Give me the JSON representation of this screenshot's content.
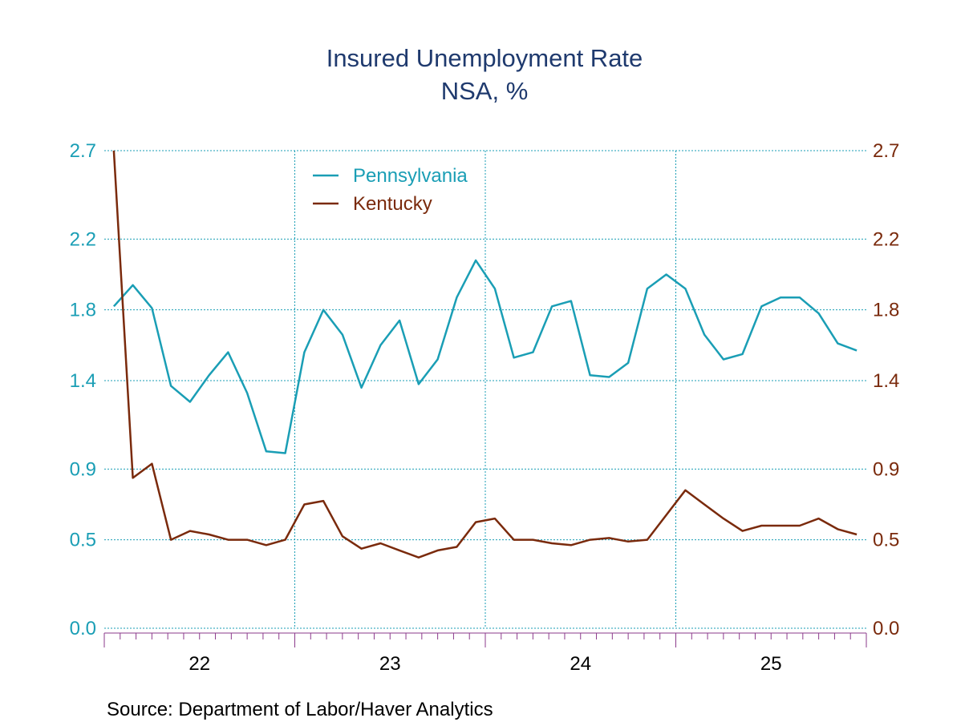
{
  "chart_data": {
    "type": "line",
    "title": "Insured Unemployment Rate",
    "subtitle": "NSA, %",
    "source": "Source:  Department of Labor/Haver Analytics",
    "x_range": [
      2021.95,
      2025.95
    ],
    "x_tick_labels": [
      {
        "label": "22",
        "year": 2022
      },
      {
        "label": "23",
        "year": 2023
      },
      {
        "label": "24",
        "year": 2024
      },
      {
        "label": "25",
        "year": 2025
      }
    ],
    "y_left": {
      "ticks": [
        "0.0",
        "0.5",
        "0.9",
        "1.4",
        "1.8",
        "2.2",
        "2.7"
      ],
      "ylim": [
        0.0,
        2.7
      ]
    },
    "y_right": {
      "ticks": [
        "0.0",
        "0.5",
        "0.9",
        "1.4",
        "1.8",
        "2.2",
        "2.7"
      ],
      "ylim": [
        0.0,
        2.7
      ]
    },
    "grid": true,
    "legend_position": "top-center",
    "colors": {
      "pennsylvania": "#1a9eb5",
      "kentucky": "#7a2a0c",
      "grid": "#1a9eb5",
      "axis": "#8b3a8b"
    },
    "series": [
      {
        "name": "Pennsylvania",
        "axis": "left",
        "x": [
          2022.0,
          2022.1,
          2022.2,
          2022.3,
          2022.4,
          2022.5,
          2022.6,
          2022.7,
          2022.8,
          2022.9,
          2023.0,
          2023.1,
          2023.2,
          2023.3,
          2023.4,
          2023.5,
          2023.6,
          2023.7,
          2023.8,
          2023.9,
          2024.0,
          2024.1,
          2024.2,
          2024.3,
          2024.4,
          2024.5,
          2024.6,
          2024.7,
          2024.8,
          2024.9,
          2025.0,
          2025.1,
          2025.2,
          2025.3,
          2025.4,
          2025.5,
          2025.6,
          2025.7,
          2025.8,
          2025.9
        ],
        "values": [
          1.82,
          1.94,
          1.81,
          1.37,
          1.28,
          1.43,
          1.56,
          1.33,
          1.0,
          0.99,
          1.56,
          1.8,
          1.66,
          1.36,
          1.6,
          1.74,
          1.38,
          1.52,
          1.87,
          2.08,
          1.92,
          1.53,
          1.56,
          1.82,
          1.85,
          1.43,
          1.42,
          1.5,
          1.92,
          2.0,
          1.92,
          1.66,
          1.52,
          1.55,
          1.82,
          1.87,
          1.87,
          1.78,
          1.61,
          1.57
        ]
      },
      {
        "name": "Kentucky",
        "axis": "right",
        "x": [
          2022.0,
          2022.1,
          2022.2,
          2022.3,
          2022.4,
          2022.5,
          2022.6,
          2022.7,
          2022.8,
          2022.9,
          2023.0,
          2023.1,
          2023.2,
          2023.3,
          2023.4,
          2023.5,
          2023.6,
          2023.7,
          2023.8,
          2023.9,
          2024.0,
          2024.1,
          2024.2,
          2024.3,
          2024.4,
          2024.5,
          2024.6,
          2024.7,
          2024.8,
          2024.9,
          2025.0,
          2025.1,
          2025.2,
          2025.3,
          2025.4,
          2025.5,
          2025.6,
          2025.7,
          2025.8,
          2025.9
        ],
        "values": [
          2.7,
          0.85,
          0.93,
          0.5,
          0.55,
          0.53,
          0.5,
          0.5,
          0.47,
          0.5,
          0.7,
          0.72,
          0.52,
          0.45,
          0.48,
          0.44,
          0.4,
          0.44,
          0.46,
          0.6,
          0.62,
          0.5,
          0.5,
          0.48,
          0.47,
          0.5,
          0.51,
          0.49,
          0.5,
          0.64,
          0.78,
          0.7,
          0.62,
          0.55,
          0.58,
          0.58,
          0.58,
          0.62,
          0.56,
          0.53
        ]
      }
    ]
  }
}
